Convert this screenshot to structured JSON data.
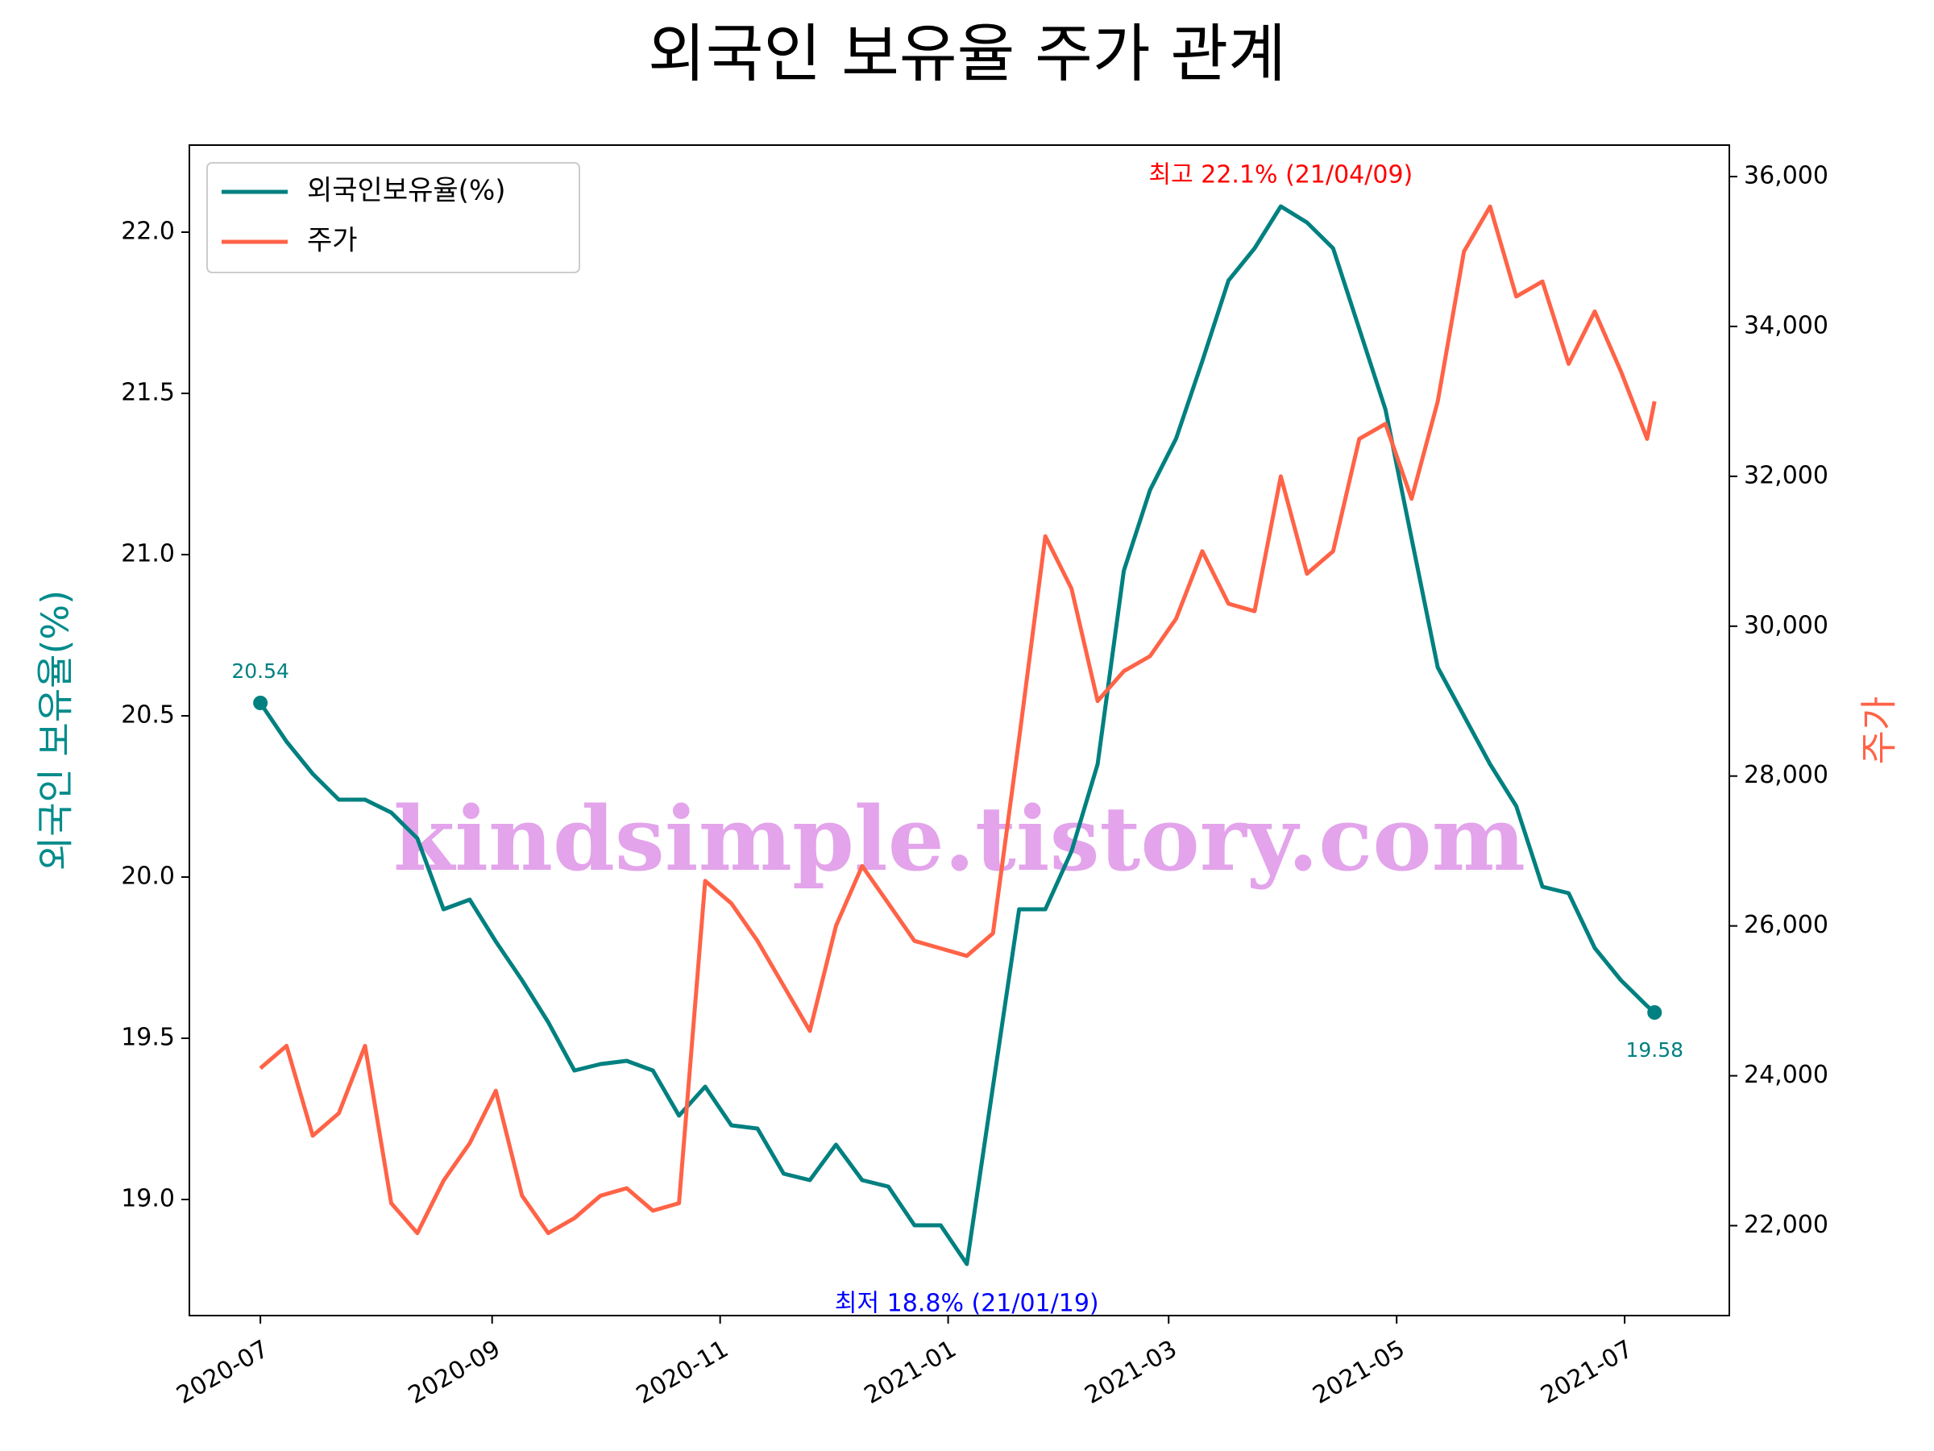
{
  "chart_data": {
    "type": "line",
    "title": "외국인 보유율 주가 관계",
    "y_label": "외국인 보유율(%)",
    "y2_label": "주가",
    "legend": "upper left",
    "watermark": "kindsimple.tistory.com",
    "x": [
      "2020-07-01",
      "2020-07-08",
      "2020-07-15",
      "2020-07-22",
      "2020-07-29",
      "2020-08-05",
      "2020-08-12",
      "2020-08-19",
      "2020-08-26",
      "2020-09-02",
      "2020-09-09",
      "2020-09-16",
      "2020-09-23",
      "2020-09-30",
      "2020-10-07",
      "2020-10-14",
      "2020-10-21",
      "2020-10-28",
      "2020-11-04",
      "2020-11-11",
      "2020-11-18",
      "2020-11-25",
      "2020-12-02",
      "2020-12-09",
      "2020-12-16",
      "2020-12-23",
      "2020-12-30",
      "2021-01-06",
      "2021-01-13",
      "2021-01-20",
      "2021-01-27",
      "2021-02-03",
      "2021-02-10",
      "2021-02-17",
      "2021-02-24",
      "2021-03-03",
      "2021-03-10",
      "2021-03-17",
      "2021-03-24",
      "2021-03-31",
      "2021-04-07",
      "2021-04-14",
      "2021-04-21",
      "2021-04-28",
      "2021-05-05",
      "2021-05-12",
      "2021-05-19",
      "2021-05-26",
      "2021-06-02",
      "2021-06-09",
      "2021-06-16",
      "2021-06-23",
      "2021-06-30",
      "2021-07-07",
      "2021-07-09"
    ],
    "series": [
      {
        "name": "외국인보유율(%)",
        "color": "#008080",
        "axis": "y",
        "values": [
          20.54,
          20.42,
          20.32,
          20.24,
          20.24,
          20.2,
          20.12,
          19.9,
          19.93,
          19.8,
          19.68,
          19.55,
          19.4,
          19.42,
          19.43,
          19.4,
          19.26,
          19.35,
          19.23,
          19.22,
          19.08,
          19.06,
          19.17,
          19.06,
          19.04,
          18.92,
          18.92,
          18.8,
          19.35,
          19.9,
          19.9,
          20.08,
          20.35,
          20.95,
          21.2,
          21.36,
          21.6,
          21.85,
          21.95,
          22.08,
          22.03,
          21.95,
          21.7,
          21.45,
          21.05,
          20.65,
          20.5,
          20.35,
          20.22,
          19.97,
          19.95,
          19.78,
          19.68,
          19.6,
          19.58
        ]
      },
      {
        "name": "주가",
        "color": "#ff6347",
        "axis": "y2",
        "values": [
          24100,
          24400,
          23200,
          23500,
          24400,
          22300,
          21900,
          22600,
          23100,
          23800,
          22400,
          21900,
          22100,
          22400,
          22500,
          22200,
          22300,
          26600,
          26300,
          25800,
          25200,
          24600,
          26000,
          26800,
          26300,
          25800,
          25700,
          25600,
          25900,
          28500,
          31200,
          30500,
          29000,
          29400,
          29600,
          30100,
          31000,
          30300,
          30200,
          32000,
          30700,
          31000,
          32500,
          32700,
          31700,
          33000,
          35000,
          35600,
          34400,
          34600,
          33500,
          34200,
          33400,
          32500,
          33000
        ]
      }
    ],
    "annotations": [
      {
        "text": "최고 22.1% (21/04/09)",
        "color": "#ff0000"
      },
      {
        "text": "최저 18.8% (21/01/19)",
        "color": "#0000ff"
      }
    ],
    "xlim": [
      "2020-06-12",
      "2021-07-29"
    ],
    "xticks": [
      "2020-07",
      "2020-09",
      "2020-11",
      "2021-01",
      "2021-03",
      "2021-05",
      "2021-07"
    ],
    "ylim": [
      18.64,
      22.27
    ],
    "yticks": [
      {
        "value": 19,
        "label": "19.0"
      },
      19.5,
      {
        "value": 20,
        "label": "20.0"
      },
      20.5,
      {
        "value": 21,
        "label": "21.0"
      },
      21.5,
      {
        "value": 22,
        "label": "22.0"
      }
    ],
    "y2lim": [
      20800,
      36420
    ],
    "y2ticks": [
      {
        "value": 22000,
        "label": "22,000"
      },
      {
        "value": 24000,
        "label": "24,000"
      },
      {
        "value": 26000,
        "label": "26,000"
      },
      {
        "value": 28000,
        "label": "28,000"
      },
      {
        "value": 30000,
        "label": "30,000"
      },
      {
        "value": 32000,
        "label": "32,000"
      },
      {
        "value": 34000,
        "label": "34,000"
      },
      {
        "value": 36000,
        "label": "36,000"
      }
    ]
  }
}
